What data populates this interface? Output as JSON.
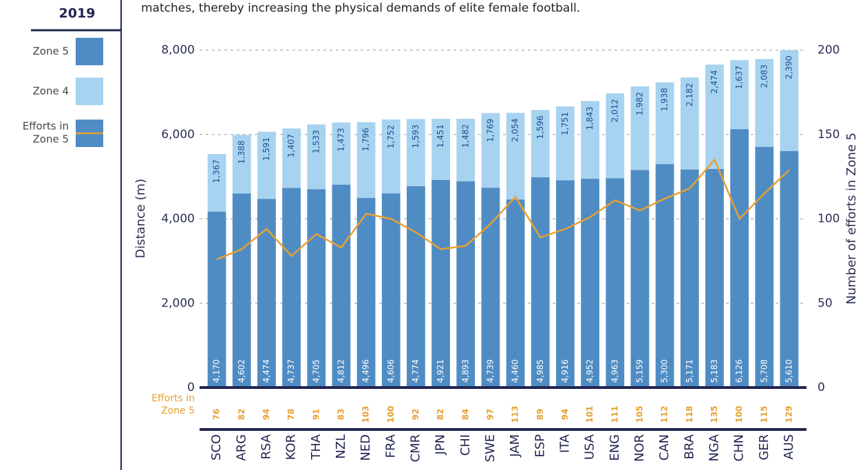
{
  "chart_data": {
    "type": "bar",
    "caption": "matches, thereby increasing the physical demands of elite female football.",
    "year": "2019",
    "y_label": "Distance (m)",
    "y2_label": "Number of efforts in Zone 5",
    "categories": [
      "SCO",
      "ARG",
      "RSA",
      "KOR",
      "THA",
      "NZL",
      "NED",
      "FRA",
      "CMR",
      "JPN",
      "CHI",
      "SWE",
      "JAM",
      "ESP",
      "ITA",
      "USA",
      "ENG",
      "NOR",
      "CAN",
      "BRA",
      "NGA",
      "CHN",
      "GER",
      "AUS"
    ],
    "series": [
      {
        "name": "Zone 5",
        "color": "#4f8cc4",
        "values": [
          4170,
          4602,
          4474,
          4737,
          4705,
          4812,
          4496,
          4606,
          4774,
          4921,
          4893,
          4739,
          4460,
          4985,
          4916,
          4952,
          4963,
          5159,
          5300,
          5171,
          5183,
          6126,
          5708,
          5610
        ],
        "value_labels": [
          "4,170",
          "4,602",
          "4,474",
          "4,737",
          "4,705",
          "4,812",
          "4,496",
          "4,606",
          "4,774",
          "4,921",
          "4,893",
          "4,739",
          "4,460",
          "4,985",
          "4,916",
          "4,952",
          "4,963",
          "5,159",
          "5,300",
          "5,171",
          "5,183",
          "6,126",
          "5,708",
          "5,610"
        ]
      },
      {
        "name": "Zone 4",
        "color": "#a7d3f1",
        "values": [
          1367,
          1388,
          1591,
          1407,
          1533,
          1473,
          1796,
          1752,
          1593,
          1451,
          1482,
          1769,
          2054,
          1596,
          1751,
          1843,
          2012,
          1982,
          1938,
          2182,
          2474,
          1637,
          2083,
          2390
        ],
        "value_labels": [
          "1,367",
          "1,388",
          "1,591",
          "1,407",
          "1,533",
          "1,473",
          "1,796",
          "1,752",
          "1,593",
          "1,451",
          "1,482",
          "1,769",
          "2,054",
          "1,596",
          "1,751",
          "1,843",
          "2,012",
          "1,982",
          "1,938",
          "2,182",
          "2,474",
          "1,637",
          "2,083",
          "2,390"
        ]
      },
      {
        "name": "Efforts in Zone 5",
        "color": "#e8a030",
        "axis": "y2",
        "values": [
          76,
          82,
          94,
          78,
          91,
          83,
          103,
          100,
          92,
          82,
          84,
          97,
          113,
          89,
          94,
          101,
          111,
          105,
          112,
          118,
          135,
          100,
          115,
          129
        ]
      }
    ],
    "ylim": [
      0,
      8000
    ],
    "yticks": [
      0,
      {
        "value": 2000,
        "label": "2,000"
      },
      {
        "value": 4000,
        "label": "4,000"
      },
      {
        "value": 6000,
        "label": "6,000"
      },
      {
        "value": 8000,
        "label": "8,000"
      }
    ],
    "y2lim": [
      0,
      200
    ],
    "y2ticks": [
      0,
      50,
      100,
      150,
      200
    ],
    "grid": true
  }
}
